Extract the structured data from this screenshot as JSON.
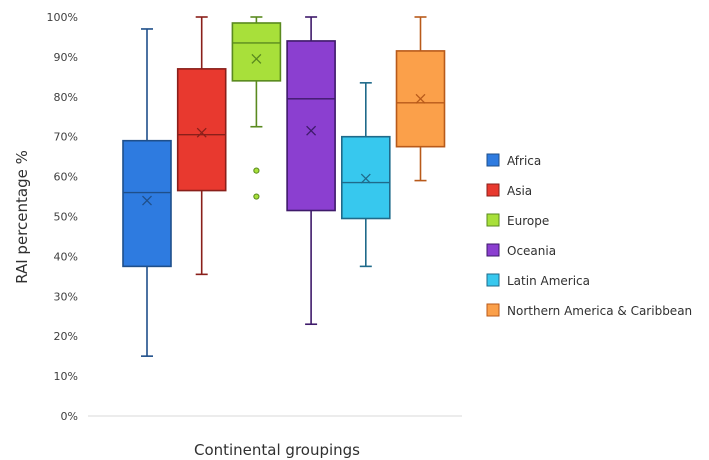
{
  "chart_data": {
    "type": "box",
    "xlabel": "Continental groupings",
    "ylabel": "RAI percentage %",
    "ylim": [
      0,
      100
    ],
    "y_ticks": [
      "0%",
      "10%",
      "20%",
      "30%",
      "40%",
      "50%",
      "60%",
      "70%",
      "80%",
      "90%",
      "100%"
    ],
    "grid": false,
    "legend_position": "right",
    "series": [
      {
        "name": "Africa",
        "color": "#2e7be0",
        "stroke": "#1f4f8a",
        "min": 15,
        "q1": 37.5,
        "median": 56,
        "q3": 69,
        "max": 97,
        "mean": 54,
        "outliers": []
      },
      {
        "name": "Asia",
        "color": "#e8392f",
        "stroke": "#8a1f1a",
        "min": 35.5,
        "q1": 56.5,
        "median": 70.5,
        "q3": 87,
        "max": 100,
        "mean": 71,
        "outliers": []
      },
      {
        "name": "Europe",
        "color": "#a8e03a",
        "stroke": "#5a8a1f",
        "min": 72.5,
        "q1": 84,
        "median": 93.5,
        "q3": 98.5,
        "max": 100,
        "mean": 89.5,
        "outliers": [
          61.5,
          55
        ]
      },
      {
        "name": "Oceania",
        "color": "#8b3fd0",
        "stroke": "#3e1a6a",
        "min": 23,
        "q1": 51.5,
        "median": 79.5,
        "q3": 94,
        "max": 100,
        "mean": 71.5,
        "outliers": []
      },
      {
        "name": "Latin America",
        "color": "#37c8ee",
        "stroke": "#1f6a8a",
        "min": 37.5,
        "q1": 49.5,
        "median": 58.5,
        "q3": 70,
        "max": 83.5,
        "mean": 59.5,
        "outliers": []
      },
      {
        "name": "Northern America & Caribbean",
        "color": "#fba04a",
        "stroke": "#b85a1a",
        "min": 59,
        "q1": 67.5,
        "median": 78.5,
        "q3": 91.5,
        "max": 100,
        "mean": 79.5,
        "outliers": []
      }
    ]
  }
}
